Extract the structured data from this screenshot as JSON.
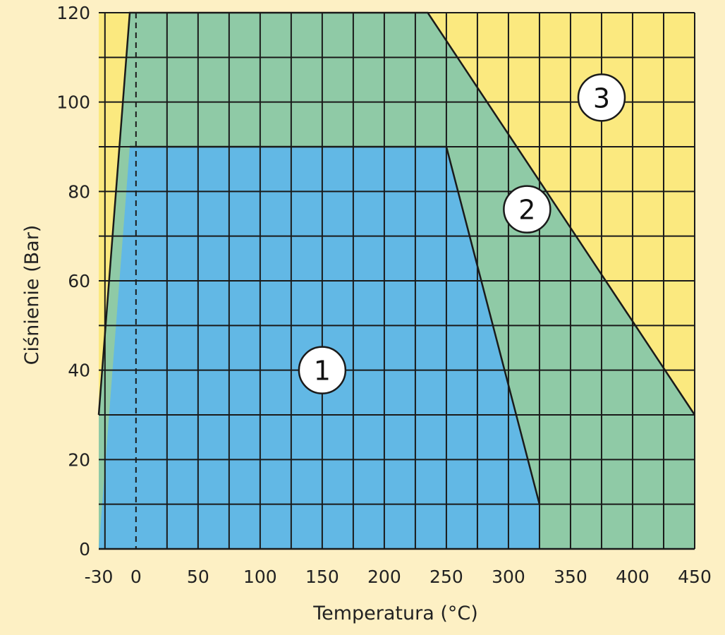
{
  "chart_data": {
    "type": "area",
    "title": "",
    "xlabel": "Temperatura (°C)",
    "ylabel": "Ciśnienie (Bar)",
    "xlim": [
      -30,
      450
    ],
    "ylim": [
      0,
      120
    ],
    "x_ticks": [
      -30,
      0,
      50,
      100,
      150,
      200,
      250,
      300,
      350,
      400,
      450
    ],
    "y_ticks": [
      0,
      20,
      40,
      60,
      80,
      100,
      120
    ],
    "x_tick_labels": [
      "-30",
      "0",
      "50",
      "100",
      "150",
      "200",
      "250",
      "300",
      "350",
      "400",
      "450"
    ],
    "y_tick_labels": [
      "0",
      "20",
      "40",
      "60",
      "80",
      "100",
      "120"
    ],
    "grid": true,
    "background_color": "#fbe97f",
    "regions": [
      {
        "label": "3",
        "color": "#fbe97f",
        "label_position": [
          375,
          101
        ],
        "polygon": [
          [
            -30,
            0
          ],
          [
            -30,
            120
          ],
          [
            450,
            120
          ],
          [
            450,
            0
          ]
        ]
      },
      {
        "label": "2",
        "color": "#8fcaa6",
        "label_position": [
          315,
          76
        ],
        "polygon": [
          [
            -30,
            0
          ],
          [
            -30,
            30
          ],
          [
            -5,
            120
          ],
          [
            235,
            120
          ],
          [
            450,
            30
          ],
          [
            450,
            0
          ]
        ]
      },
      {
        "label": "1",
        "color": "#62b8e5",
        "label_position": [
          150,
          40
        ],
        "polygon": [
          [
            -30,
            0
          ],
          [
            -5,
            90
          ],
          [
            250,
            90
          ],
          [
            325,
            10
          ],
          [
            325,
            0
          ]
        ]
      }
    ],
    "dashed_reference_x": 0
  }
}
